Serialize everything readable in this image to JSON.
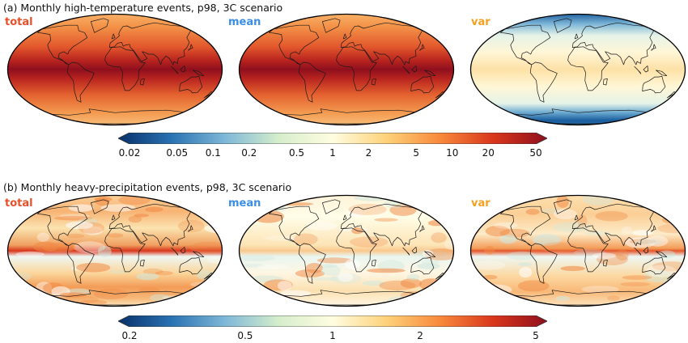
{
  "panels": [
    {
      "title": "(a) Monthly high-temperature events, p98, 3C scenario",
      "maps": [
        {
          "label": "total",
          "label_color": "#e8502a",
          "style": "hot"
        },
        {
          "label": "mean",
          "label_color": "#3a8ee6",
          "style": "hot"
        },
        {
          "label": "var",
          "label_color": "#f2a11f",
          "style": "var"
        }
      ],
      "colorbar": {
        "scale": "log",
        "ticks": [
          "0.02",
          "0.05",
          "0.1",
          "0.2",
          "0.5",
          "1",
          "2",
          "5",
          "10",
          "20",
          "50"
        ],
        "range": [
          0.02,
          50
        ]
      }
    },
    {
      "title": "(b) Monthly heavy-precipitation events, p98, 3C scenario",
      "maps": [
        {
          "label": "total",
          "label_color": "#e8502a",
          "style": "precip-strong"
        },
        {
          "label": "mean",
          "label_color": "#3a8ee6",
          "style": "precip-weak"
        },
        {
          "label": "var",
          "label_color": "#f2a11f",
          "style": "precip-mid"
        }
      ],
      "colorbar": {
        "scale": "log",
        "ticks": [
          "0.2",
          "0.5",
          "1",
          "2",
          "5"
        ],
        "range": [
          0.2,
          5
        ]
      }
    }
  ],
  "colormap": [
    "#08306b",
    "#2a73b2",
    "#7fb8d8",
    "#d6eecb",
    "#fffde0",
    "#fdd27a",
    "#f8893b",
    "#d8361c",
    "#8e0f1d"
  ]
}
